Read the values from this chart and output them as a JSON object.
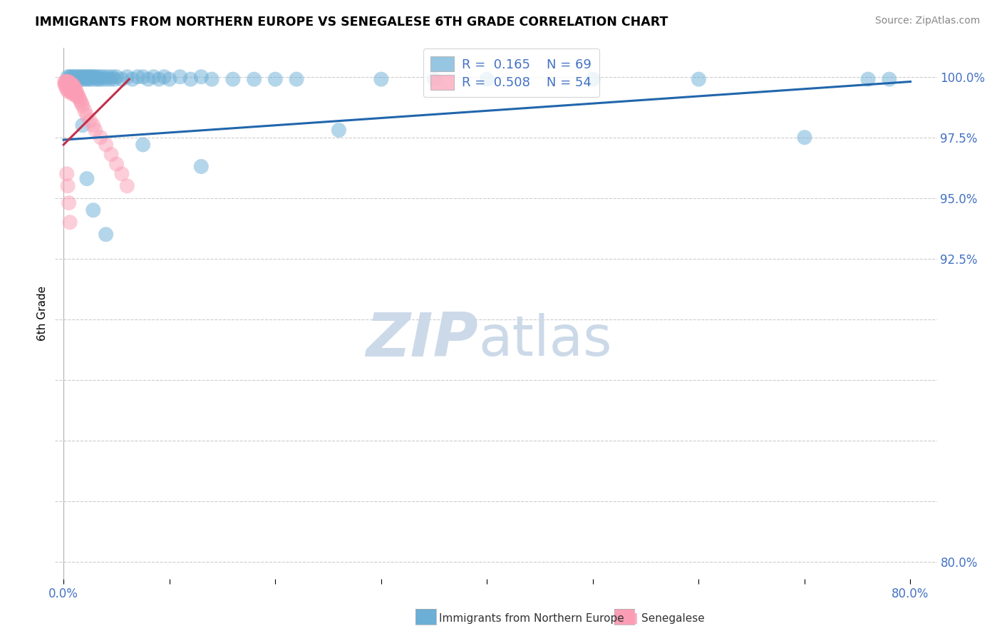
{
  "title": "IMMIGRANTS FROM NORTHERN EUROPE VS SENEGALESE 6TH GRADE CORRELATION CHART",
  "source": "Source: ZipAtlas.com",
  "ylabel": "6th Grade",
  "legend_label1": "Immigrants from Northern Europe",
  "legend_label2": "Senegalese",
  "R1": 0.165,
  "N1": 69,
  "R2": 0.508,
  "N2": 54,
  "color1": "#6baed6",
  "color2": "#fb9eb5",
  "line_color1": "#2166ac",
  "line_color2": "#c0304a",
  "bg_color": "#ffffff",
  "watermark": "ZIPatlas",
  "xlim_min": -0.008,
  "xlim_max": 0.825,
  "ylim_min": 0.793,
  "ylim_max": 1.012,
  "ytick_positions": [
    0.8,
    0.825,
    0.85,
    0.875,
    0.9,
    0.925,
    0.95,
    0.975,
    1.0
  ],
  "ytick_labels": [
    "80.0%",
    "",
    "",
    "",
    "",
    "92.5%",
    "95.0%",
    "97.5%",
    "100.0%"
  ],
  "xtick_positions": [
    0.0,
    0.1,
    0.2,
    0.3,
    0.4,
    0.5,
    0.6,
    0.7,
    0.8
  ],
  "xtick_labels": [
    "0.0%",
    "",
    "",
    "",
    "",
    "",
    "",
    "",
    "80.0%"
  ],
  "blue_x": [
    0.004,
    0.006,
    0.007,
    0.009,
    0.01,
    0.011,
    0.012,
    0.013,
    0.014,
    0.015,
    0.016,
    0.017,
    0.018,
    0.019,
    0.02,
    0.021,
    0.022,
    0.023,
    0.024,
    0.025,
    0.026,
    0.027,
    0.028,
    0.03,
    0.031,
    0.032,
    0.033,
    0.035,
    0.036,
    0.038,
    0.04,
    0.042,
    0.044,
    0.046,
    0.048,
    0.05,
    0.055,
    0.06,
    0.065,
    0.07,
    0.075,
    0.08,
    0.085,
    0.09,
    0.095,
    0.1,
    0.11,
    0.12,
    0.13,
    0.14,
    0.16,
    0.18,
    0.2,
    0.22,
    0.26,
    0.3,
    0.35,
    0.4,
    0.5,
    0.6,
    0.7,
    0.76,
    0.78,
    0.13,
    0.075,
    0.04,
    0.018,
    0.022,
    0.028
  ],
  "blue_y": [
    1.0,
    1.0,
    1.0,
    1.0,
    0.999,
    1.0,
    0.999,
    1.0,
    0.999,
    1.0,
    1.0,
    0.999,
    1.0,
    0.999,
    1.0,
    1.0,
    0.999,
    1.0,
    0.999,
    1.0,
    1.0,
    0.999,
    1.0,
    1.0,
    0.999,
    1.0,
    0.999,
    1.0,
    0.999,
    1.0,
    0.999,
    1.0,
    0.999,
    1.0,
    0.999,
    1.0,
    0.999,
    1.0,
    0.999,
    1.0,
    1.0,
    0.999,
    1.0,
    0.999,
    1.0,
    0.999,
    1.0,
    0.999,
    1.0,
    0.999,
    0.999,
    0.999,
    0.999,
    0.999,
    0.978,
    0.999,
    0.999,
    0.999,
    0.999,
    0.999,
    0.975,
    0.999,
    0.999,
    0.963,
    0.972,
    0.935,
    0.98,
    0.958,
    0.945
  ],
  "pink_x": [
    0.001,
    0.001,
    0.002,
    0.002,
    0.002,
    0.003,
    0.003,
    0.003,
    0.004,
    0.004,
    0.004,
    0.004,
    0.005,
    0.005,
    0.005,
    0.006,
    0.006,
    0.006,
    0.007,
    0.007,
    0.007,
    0.008,
    0.008,
    0.008,
    0.009,
    0.009,
    0.01,
    0.01,
    0.01,
    0.011,
    0.011,
    0.012,
    0.012,
    0.013,
    0.014,
    0.015,
    0.016,
    0.017,
    0.018,
    0.02,
    0.022,
    0.025,
    0.028,
    0.03,
    0.035,
    0.04,
    0.045,
    0.05,
    0.055,
    0.06,
    0.003,
    0.004,
    0.005,
    0.006
  ],
  "pink_y": [
    0.998,
    0.997,
    0.998,
    0.997,
    0.996,
    0.998,
    0.997,
    0.995,
    0.998,
    0.997,
    0.996,
    0.994,
    0.998,
    0.997,
    0.995,
    0.997,
    0.996,
    0.994,
    0.997,
    0.996,
    0.994,
    0.997,
    0.995,
    0.993,
    0.996,
    0.994,
    0.996,
    0.995,
    0.993,
    0.995,
    0.993,
    0.994,
    0.992,
    0.993,
    0.992,
    0.991,
    0.99,
    0.989,
    0.988,
    0.986,
    0.984,
    0.982,
    0.98,
    0.978,
    0.975,
    0.972,
    0.968,
    0.964,
    0.96,
    0.955,
    0.96,
    0.955,
    0.948,
    0.94
  ],
  "blue_line_x0": 0.0,
  "blue_line_x1": 0.8,
  "blue_line_y0": 0.974,
  "blue_line_y1": 0.998,
  "pink_line_x0": 0.0,
  "pink_line_x1": 0.062,
  "pink_line_y0": 0.972,
  "pink_line_y1": 0.999
}
